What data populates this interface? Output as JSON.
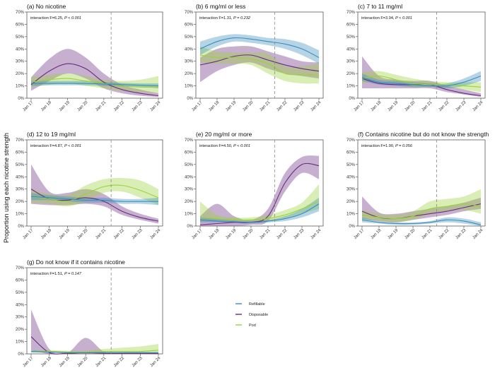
{
  "figure": {
    "y_axis_label": "Proportion using each nicotine strength",
    "colors": {
      "Refillable": "#3c8dbd",
      "Disposable": "#6a2c80",
      "Pod": "#9bd13a"
    }
  },
  "legend": {
    "items": [
      "Refillable",
      "Disposable",
      "Pod"
    ]
  },
  "chart_data": [
    {
      "type": "line",
      "title": "(a) No nicotine",
      "annotation_prefix": "interaction F=6.25, ",
      "annotation_p": "P < 0.001",
      "categories": [
        "Jan 17",
        "Jan 18",
        "Jan 19",
        "Jan 20",
        "Jan 21",
        "Jan 22",
        "Jan 23",
        "Jan 24"
      ],
      "ylim": [
        0,
        70
      ],
      "yticks": [
        "0%",
        "10%",
        "20%",
        "30%",
        "40%",
        "50%",
        "60%",
        "70%"
      ],
      "vline_x": 4.4,
      "series": [
        {
          "name": "Refillable",
          "x": [
            0,
            1,
            2,
            3,
            4,
            5,
            6,
            7
          ],
          "values": [
            12,
            12,
            12,
            12,
            11.5,
            11,
            10.5,
            10
          ],
          "lower": [
            10,
            10.5,
            10.5,
            10.5,
            10,
            9.5,
            9,
            8
          ],
          "upper": [
            14,
            14,
            14,
            14,
            13,
            12.5,
            12,
            12
          ]
        },
        {
          "name": "Disposable",
          "x": [
            0,
            1,
            2,
            3,
            4,
            5,
            6,
            7
          ],
          "values": [
            11,
            22,
            28,
            24,
            13,
            7,
            4,
            2
          ],
          "lower": [
            6,
            14,
            20,
            16,
            8,
            4,
            2,
            1
          ],
          "upper": [
            17,
            32,
            40,
            33,
            20,
            11,
            7,
            4
          ]
        },
        {
          "name": "Pod",
          "x": [
            0,
            1,
            2,
            3,
            4,
            5,
            6,
            7
          ],
          "values": [
            13,
            15,
            16,
            14,
            12,
            10,
            9,
            9
          ],
          "lower": [
            9,
            11,
            12,
            10,
            8,
            6,
            5,
            4
          ],
          "upper": [
            17,
            19,
            20,
            18,
            15,
            14,
            15,
            18
          ]
        }
      ]
    },
    {
      "type": "line",
      "title": "(b) 6 mg/ml or less",
      "annotation_prefix": "interaction F=1.31, ",
      "annotation_p": "P = 0.232",
      "categories": [
        "Jan 17",
        "Jan 18",
        "Jan 19",
        "Jan 20",
        "Jan 21",
        "Jan 22",
        "Jan 23",
        "Jan 24"
      ],
      "ylim": [
        0,
        70
      ],
      "yticks": [
        "0%",
        "10%",
        "20%",
        "30%",
        "40%",
        "50%",
        "60%",
        "70%"
      ],
      "vline_x": 4.4,
      "series": [
        {
          "name": "Refillable",
          "x": [
            0,
            1,
            2,
            3,
            4,
            5,
            6,
            7
          ],
          "values": [
            40,
            46,
            49,
            48,
            46,
            44,
            40,
            33
          ],
          "lower": [
            35,
            42,
            46,
            45,
            43,
            40,
            35,
            28
          ],
          "upper": [
            46,
            50,
            52,
            51,
            49,
            48,
            45,
            39
          ]
        },
        {
          "name": "Disposable",
          "x": [
            0,
            1,
            2,
            3,
            4,
            5,
            6,
            7
          ],
          "values": [
            27,
            30,
            34,
            35,
            31,
            27,
            24,
            22
          ],
          "lower": [
            13,
            22,
            27,
            29,
            24,
            20,
            18,
            16
          ],
          "upper": [
            33,
            40,
            42,
            42,
            38,
            34,
            30,
            29
          ]
        },
        {
          "name": "Pod",
          "x": [
            0,
            1,
            2,
            3,
            4,
            5,
            6,
            7
          ],
          "values": [
            35,
            33,
            33,
            32,
            28,
            20,
            19,
            19
          ],
          "lower": [
            29,
            28,
            28,
            27,
            20,
            14,
            12,
            12
          ],
          "upper": [
            42,
            38,
            37,
            37,
            36,
            26,
            26,
            28
          ]
        }
      ]
    },
    {
      "type": "line",
      "title": "(c) 7 to 11 mg/ml",
      "annotation_prefix": "interaction F=3.94, ",
      "annotation_p": "P < 0.001",
      "categories": [
        "Jan 17",
        "Jan 18",
        "Jan 19",
        "Jan 20",
        "Jan 21",
        "Jan 22",
        "Jan 23",
        "Jan 24"
      ],
      "ylim": [
        0,
        70
      ],
      "yticks": [
        "0%",
        "10%",
        "20%",
        "30%",
        "40%",
        "50%",
        "60%",
        "70%"
      ],
      "vline_x": 4.4,
      "series": [
        {
          "name": "Refillable",
          "x": [
            0,
            1,
            2,
            3,
            4,
            5,
            6,
            7
          ],
          "values": [
            17,
            13,
            12,
            11,
            10,
            10,
            13,
            18
          ],
          "lower": [
            14,
            11,
            10,
            9,
            9,
            8,
            10,
            14
          ],
          "upper": [
            20,
            15,
            14,
            13,
            12,
            12,
            16,
            22
          ]
        },
        {
          "name": "Disposable",
          "x": [
            0,
            1,
            2,
            3,
            4,
            5,
            6,
            7
          ],
          "values": [
            16,
            12,
            11,
            11,
            11,
            7,
            4,
            2
          ],
          "lower": [
            8,
            8,
            8,
            8,
            8,
            5,
            3,
            1
          ],
          "upper": [
            34,
            18,
            15,
            14,
            14,
            10,
            7,
            4
          ]
        },
        {
          "name": "Pod",
          "x": [
            0,
            1,
            2,
            3,
            4,
            5,
            6,
            7
          ],
          "values": [
            16,
            18,
            15,
            12,
            11,
            11,
            10,
            9
          ],
          "lower": [
            12,
            14,
            12,
            9,
            9,
            9,
            7,
            5
          ],
          "upper": [
            21,
            22,
            19,
            16,
            14,
            13,
            13,
            13
          ]
        }
      ]
    },
    {
      "type": "line",
      "title": "(d) 12 to 19 mg/ml",
      "annotation_prefix": "interaction F=4.87, ",
      "annotation_p": "P < 0.001",
      "categories": [
        "Jan 17",
        "Jan 18",
        "Jan 19",
        "Jan 20",
        "Jan 21",
        "Jan 22",
        "Jan 23",
        "Jan 24"
      ],
      "ylim": [
        0,
        70
      ],
      "yticks": [
        "0%",
        "10%",
        "20%",
        "30%",
        "40%",
        "50%",
        "60%",
        "70%"
      ],
      "vline_x": 4.4,
      "series": [
        {
          "name": "Refillable",
          "x": [
            0,
            1,
            2,
            3,
            4,
            5,
            6,
            7
          ],
          "values": [
            24,
            23,
            22,
            21,
            21,
            20,
            20,
            20
          ],
          "lower": [
            21,
            21,
            20,
            19,
            19,
            18,
            18,
            17
          ],
          "upper": [
            27,
            25,
            24,
            23,
            23,
            22,
            22,
            23
          ]
        },
        {
          "name": "Disposable",
          "x": [
            0,
            1,
            2,
            3,
            4,
            5,
            6,
            7
          ],
          "values": [
            30,
            22,
            21,
            23,
            20,
            12,
            7,
            4
          ],
          "lower": [
            18,
            17,
            17,
            18,
            16,
            9,
            5,
            2
          ],
          "upper": [
            50,
            28,
            27,
            30,
            26,
            16,
            10,
            6
          ]
        },
        {
          "name": "Pod",
          "x": [
            0,
            1,
            2,
            3,
            4,
            5,
            6,
            7
          ],
          "values": [
            24,
            22,
            20,
            26,
            32,
            33,
            29,
            23
          ],
          "lower": [
            19,
            18,
            16,
            20,
            27,
            28,
            23,
            17
          ],
          "upper": [
            30,
            26,
            25,
            33,
            38,
            39,
            37,
            30
          ]
        }
      ]
    },
    {
      "type": "line",
      "title": "(e) 20 mg/ml or more",
      "annotation_prefix": "interaction F=4.50, ",
      "annotation_p": "P < 0.001",
      "categories": [
        "Jan 17",
        "Jan 18",
        "Jan 19",
        "Jan 20",
        "Jan 21",
        "Jan 22",
        "Jan 23",
        "Jan 24"
      ],
      "ylim": [
        0,
        70
      ],
      "yticks": [
        "0%",
        "10%",
        "20%",
        "30%",
        "40%",
        "50%",
        "60%",
        "70%"
      ],
      "vline_x": 4.4,
      "series": [
        {
          "name": "Refillable",
          "x": [
            0,
            1,
            2,
            3,
            4,
            5,
            6,
            7
          ],
          "values": [
            5,
            4,
            3.5,
            3,
            4,
            6,
            10,
            18
          ],
          "lower": [
            3,
            3,
            2.5,
            2,
            3,
            4,
            7,
            12
          ],
          "upper": [
            7,
            5.5,
            4.5,
            4,
            5,
            8,
            14,
            23
          ]
        },
        {
          "name": "Disposable",
          "x": [
            0,
            1,
            2,
            3,
            4,
            5,
            6,
            7
          ],
          "values": [
            1,
            2,
            3,
            3,
            8,
            35,
            50,
            49
          ],
          "lower": [
            0,
            0,
            0,
            1,
            4,
            28,
            43,
            38
          ],
          "upper": [
            8,
            18,
            8,
            5,
            14,
            43,
            56,
            57
          ]
        },
        {
          "name": "Pod",
          "x": [
            0,
            1,
            2,
            3,
            4,
            5,
            6,
            7
          ],
          "values": [
            7,
            6,
            5,
            5,
            6,
            9,
            14,
            20
          ],
          "lower": [
            4,
            4,
            3,
            3,
            4,
            6,
            10,
            14
          ],
          "upper": [
            20,
            9,
            7,
            7,
            9,
            13,
            19,
            34
          ]
        }
      ]
    },
    {
      "type": "line",
      "title": "(f) Contains nicotine but do not know the strength",
      "annotation_prefix": "interaction F=1.90, ",
      "annotation_p": "P = 0.056",
      "categories": [
        "Jan 17",
        "Jan 18",
        "Jan 19",
        "Jan 20",
        "Jan 21",
        "Jan 22",
        "Jan 23",
        "Jan 24"
      ],
      "ylim": [
        0,
        70
      ],
      "yticks": [
        "0%",
        "10%",
        "20%",
        "30%",
        "40%",
        "50%",
        "60%",
        "70%"
      ],
      "vline_x": 4.4,
      "series": [
        {
          "name": "Refillable",
          "x": [
            0,
            1,
            2,
            3,
            4,
            5,
            6,
            7
          ],
          "values": [
            5,
            3,
            2,
            2,
            3,
            5,
            4,
            1
          ],
          "lower": [
            3,
            2,
            1,
            1,
            2,
            3,
            2,
            0
          ],
          "upper": [
            7,
            4,
            3,
            3,
            4,
            7,
            6,
            3
          ]
        },
        {
          "name": "Disposable",
          "x": [
            0,
            1,
            2,
            3,
            4,
            5,
            6,
            7
          ],
          "values": [
            12,
            7,
            6,
            8,
            10,
            12,
            15,
            18
          ],
          "lower": [
            6,
            4,
            3,
            5,
            7,
            9,
            12,
            14
          ],
          "upper": [
            24,
            11,
            10,
            12,
            14,
            16,
            19,
            23
          ]
        },
        {
          "name": "Pod",
          "x": [
            0,
            1,
            2,
            3,
            4,
            5,
            6,
            7
          ],
          "values": [
            9,
            7,
            6,
            8,
            14,
            16,
            18,
            16
          ],
          "lower": [
            5,
            4,
            3,
            5,
            10,
            12,
            13,
            10
          ],
          "upper": [
            13,
            10,
            9,
            12,
            20,
            22,
            24,
            30
          ]
        }
      ]
    },
    {
      "type": "line",
      "title": "(g) Do not know if it contains nicotine",
      "annotation_prefix": "interaction F=1.51, ",
      "annotation_p": "P = 0.147",
      "categories": [
        "Jan 17",
        "Jan 18",
        "Jan 19",
        "Jan 20",
        "Jan 21",
        "Jan 22",
        "Jan 23",
        "Jan 24"
      ],
      "ylim": [
        0,
        70
      ],
      "yticks": [
        "0%",
        "10%",
        "20%",
        "30%",
        "40%",
        "50%",
        "60%",
        "70%"
      ],
      "vline_x": 4.4,
      "series": [
        {
          "name": "Refillable",
          "x": [
            0,
            1,
            2,
            3,
            4,
            5,
            6,
            7
          ],
          "values": [
            2,
            1.5,
            1,
            1,
            1,
            1,
            1,
            1
          ],
          "lower": [
            1,
            1,
            0.5,
            0.5,
            0.5,
            0.5,
            0.5,
            0.5
          ],
          "upper": [
            3,
            2,
            1.5,
            1.5,
            1.5,
            1.5,
            1.5,
            1.5
          ]
        },
        {
          "name": "Disposable",
          "x": [
            0,
            1,
            2,
            3,
            4,
            5,
            6,
            7
          ],
          "values": [
            14,
            1,
            0.5,
            1,
            0.5,
            0.5,
            0.5,
            0.2
          ],
          "lower": [
            3,
            0,
            0,
            0,
            0,
            0,
            0,
            0
          ],
          "upper": [
            36,
            4,
            1,
            13,
            2,
            1,
            1,
            1
          ]
        },
        {
          "name": "Pod",
          "x": [
            0,
            1,
            2,
            3,
            4,
            5,
            6,
            7
          ],
          "values": [
            2,
            2,
            1.5,
            1.5,
            2,
            2,
            2,
            3
          ],
          "lower": [
            1,
            1,
            0.5,
            0.5,
            1,
            1,
            1,
            1
          ],
          "upper": [
            3,
            3,
            2.5,
            2.5,
            4,
            5,
            6,
            8
          ]
        }
      ]
    }
  ]
}
